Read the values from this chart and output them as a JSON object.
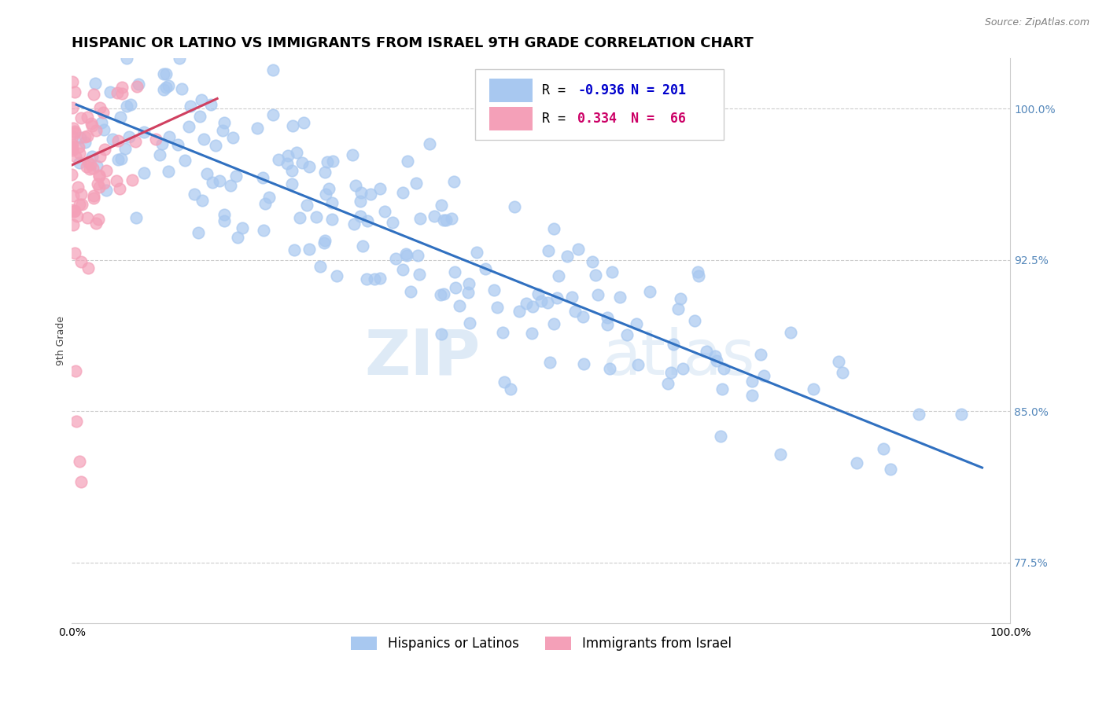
{
  "title": "HISPANIC OR LATINO VS IMMIGRANTS FROM ISRAEL 9TH GRADE CORRELATION CHART",
  "source_text": "Source: ZipAtlas.com",
  "watermark_zip": "ZIP",
  "watermark_atlas": "atlas",
  "ylabel": "9th Grade",
  "xlim": [
    0.0,
    1.0
  ],
  "ylim": [
    0.745,
    1.025
  ],
  "right_yticks": [
    0.775,
    0.85,
    0.925,
    1.0
  ],
  "right_yticklabels": [
    "77.5%",
    "85.0%",
    "92.5%",
    "100.0%"
  ],
  "xtick_positions": [
    0.0,
    1.0
  ],
  "xticklabels": [
    "0.0%",
    "100.0%"
  ],
  "blue_R": -0.936,
  "blue_N": 201,
  "pink_R": 0.334,
  "pink_N": 66,
  "blue_color": "#a8c8f0",
  "pink_color": "#f4a0b8",
  "blue_line_color": "#3070c0",
  "pink_line_color": "#d04060",
  "legend_label_blue": "Hispanics or Latinos",
  "legend_label_pink": "Immigrants from Israel",
  "blue_R_color": "#0000cc",
  "pink_R_color": "#cc0066",
  "title_fontsize": 13,
  "axis_label_fontsize": 9,
  "tick_fontsize": 10,
  "source_fontsize": 9,
  "legend_fontsize": 12,
  "blue_line_start_x": 0.005,
  "blue_line_start_y": 1.002,
  "blue_line_end_x": 0.97,
  "blue_line_end_y": 0.822,
  "pink_line_start_x": 0.0,
  "pink_line_start_y": 0.972,
  "pink_line_end_x": 0.155,
  "pink_line_end_y": 1.005
}
